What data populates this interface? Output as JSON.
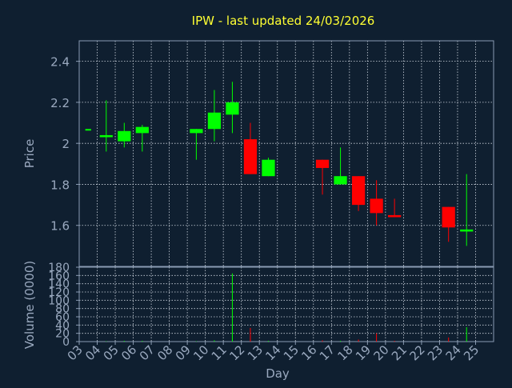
{
  "colors": {
    "background": "#0f1f30",
    "title": "#ffff33",
    "axis_text": "#9aa9bf",
    "frame": "#8a9bb3",
    "grid": "#cfd6e0",
    "up": "#00ff00",
    "down": "#ff0000"
  },
  "chart_data": [
    {
      "type": "candlestick",
      "title": "IPW - last updated 24/03/2026",
      "ylabel": "Price",
      "ylim": [
        1.4,
        2.5
      ],
      "yticks": [
        1.6,
        1.8,
        2,
        2.2,
        2.4
      ],
      "grid": true,
      "x_categories": [
        "03",
        "04",
        "05",
        "06",
        "07",
        "08",
        "09",
        "10",
        "11",
        "12",
        "13",
        "14",
        "15",
        "16",
        "17",
        "18",
        "19",
        "20",
        "21",
        "22",
        "23",
        "24",
        "25"
      ],
      "candles": [
        {
          "day": "03",
          "open": 2.07,
          "high": 2.07,
          "low": 2.07,
          "close": 2.07
        },
        {
          "day": "04",
          "open": 2.03,
          "high": 2.21,
          "low": 1.96,
          "close": 2.04
        },
        {
          "day": "05",
          "open": 2.01,
          "high": 2.1,
          "low": 1.98,
          "close": 2.06
        },
        {
          "day": "06",
          "open": 2.05,
          "high": 2.09,
          "low": 1.96,
          "close": 2.08
        },
        {
          "day": "09",
          "open": 2.05,
          "high": 2.07,
          "low": 1.92,
          "close": 2.07
        },
        {
          "day": "10",
          "open": 2.07,
          "high": 2.26,
          "low": 2.01,
          "close": 2.15
        },
        {
          "day": "11",
          "open": 2.14,
          "high": 2.3,
          "low": 2.05,
          "close": 2.2
        },
        {
          "day": "12",
          "open": 2.02,
          "high": 2.1,
          "low": 1.85,
          "close": 1.85
        },
        {
          "day": "13",
          "open": 1.84,
          "high": 1.93,
          "low": 1.84,
          "close": 1.92
        },
        {
          "day": "16",
          "open": 1.92,
          "high": 1.92,
          "low": 1.75,
          "close": 1.88
        },
        {
          "day": "17",
          "open": 1.8,
          "high": 1.98,
          "low": 1.8,
          "close": 1.84
        },
        {
          "day": "18",
          "open": 1.84,
          "high": 1.84,
          "low": 1.67,
          "close": 1.7
        },
        {
          "day": "19",
          "open": 1.73,
          "high": 1.82,
          "low": 1.6,
          "close": 1.66
        },
        {
          "day": "20",
          "open": 1.65,
          "high": 1.73,
          "low": 1.64,
          "close": 1.64
        },
        {
          "day": "23",
          "open": 1.69,
          "high": 1.69,
          "low": 1.52,
          "close": 1.59
        },
        {
          "day": "24",
          "open": 1.57,
          "high": 1.85,
          "low": 1.5,
          "close": 1.58
        }
      ]
    },
    {
      "type": "bar",
      "ylabel": "Volume (0000)",
      "xlabel": "Day",
      "ylim": [
        0,
        180
      ],
      "yticks": [
        0,
        20,
        40,
        60,
        80,
        100,
        120,
        140,
        160,
        180
      ],
      "x_categories": [
        "03",
        "04",
        "05",
        "06",
        "07",
        "08",
        "09",
        "10",
        "11",
        "12",
        "13",
        "14",
        "15",
        "16",
        "17",
        "18",
        "19",
        "20",
        "21",
        "22",
        "23",
        "24",
        "25"
      ],
      "bars": [
        {
          "day": "03",
          "value": 0,
          "dir": "down"
        },
        {
          "day": "04",
          "value": 1,
          "dir": "up"
        },
        {
          "day": "05",
          "value": 2,
          "dir": "up"
        },
        {
          "day": "06",
          "value": 2,
          "dir": "up"
        },
        {
          "day": "09",
          "value": 1,
          "dir": "up"
        },
        {
          "day": "10",
          "value": 3,
          "dir": "up"
        },
        {
          "day": "11",
          "value": 165,
          "dir": "up"
        },
        {
          "day": "12",
          "value": 33,
          "dir": "down"
        },
        {
          "day": "13",
          "value": 2,
          "dir": "up"
        },
        {
          "day": "16",
          "value": 3,
          "dir": "down"
        },
        {
          "day": "17",
          "value": 2,
          "dir": "up"
        },
        {
          "day": "18",
          "value": 5,
          "dir": "down"
        },
        {
          "day": "19",
          "value": 20,
          "dir": "down"
        },
        {
          "day": "20",
          "value": 2,
          "dir": "down"
        },
        {
          "day": "23",
          "value": 10,
          "dir": "down"
        },
        {
          "day": "24",
          "value": 35,
          "dir": "up"
        }
      ]
    }
  ]
}
